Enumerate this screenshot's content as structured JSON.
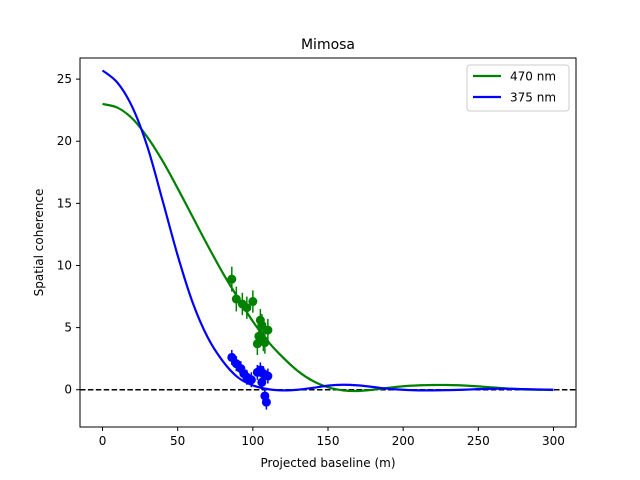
{
  "chart_data": {
    "type": "line",
    "title": "Mimosa",
    "xlabel": "Projected baseline (m)",
    "ylabel": "Spatial coherence",
    "xlim": [
      -15,
      315
    ],
    "ylim": [
      -3,
      26.7
    ],
    "xticks": [
      0,
      50,
      100,
      150,
      200,
      250,
      300
    ],
    "yticks": [
      0,
      5,
      10,
      15,
      20,
      25
    ],
    "grid": false,
    "legend_position": "upper right",
    "reference_line": {
      "y": 0,
      "style": "dashed",
      "color": "#000000"
    },
    "series": [
      {
        "name": "470 nm",
        "color": "#008000",
        "x": [
          0,
          10,
          20,
          30,
          40,
          50,
          60,
          70,
          80,
          90,
          100,
          110,
          120,
          130,
          140,
          150,
          160,
          170,
          180,
          190,
          200,
          210,
          220,
          230,
          240,
          250,
          260,
          270,
          280,
          290,
          300
        ],
        "y": [
          23.0,
          22.7,
          21.8,
          20.3,
          18.4,
          16.2,
          13.9,
          11.6,
          9.4,
          7.4,
          5.5,
          3.9,
          2.6,
          1.5,
          0.7,
          0.2,
          -0.05,
          -0.1,
          0.0,
          0.15,
          0.28,
          0.35,
          0.38,
          0.38,
          0.34,
          0.27,
          0.18,
          0.09,
          0.03,
          0.0,
          -0.02
        ]
      },
      {
        "name": "375 nm",
        "color": "#0000ff",
        "x": [
          0,
          10,
          20,
          30,
          40,
          50,
          60,
          70,
          80,
          90,
          100,
          110,
          120,
          130,
          140,
          150,
          160,
          170,
          180,
          190,
          200,
          210,
          220,
          230,
          240,
          250,
          260,
          270,
          280,
          290,
          300
        ],
        "y": [
          25.7,
          24.7,
          22.7,
          19.5,
          15.2,
          10.8,
          7.0,
          4.2,
          2.3,
          1.0,
          0.35,
          0.05,
          -0.05,
          0.0,
          0.15,
          0.33,
          0.4,
          0.35,
          0.22,
          0.08,
          0.0,
          -0.05,
          -0.05,
          -0.03,
          0.0,
          0.05,
          0.08,
          0.08,
          0.05,
          0.02,
          0.0
        ]
      }
    ],
    "measurements": [
      {
        "color": "#008000",
        "points": [
          {
            "x": 86,
            "y": 8.9,
            "err": 1.0
          },
          {
            "x": 89,
            "y": 7.3,
            "err": 1.0
          },
          {
            "x": 93,
            "y": 6.9,
            "err": 0.9
          },
          {
            "x": 96,
            "y": 6.6,
            "err": 0.9
          },
          {
            "x": 100,
            "y": 7.1,
            "err": 0.9
          },
          {
            "x": 103,
            "y": 3.7,
            "err": 0.9
          },
          {
            "x": 104,
            "y": 4.3,
            "err": 0.9
          },
          {
            "x": 105,
            "y": 5.6,
            "err": 0.9
          },
          {
            "x": 106,
            "y": 5.2,
            "err": 0.9
          },
          {
            "x": 107,
            "y": 4.0,
            "err": 0.9
          },
          {
            "x": 108,
            "y": 3.8,
            "err": 0.9
          },
          {
            "x": 110,
            "y": 4.8,
            "err": 0.9
          }
        ]
      },
      {
        "color": "#0000ff",
        "points": [
          {
            "x": 86,
            "y": 2.6,
            "err": 0.6
          },
          {
            "x": 89,
            "y": 2.1,
            "err": 0.6
          },
          {
            "x": 92,
            "y": 1.7,
            "err": 0.6
          },
          {
            "x": 94,
            "y": 1.3,
            "err": 0.6
          },
          {
            "x": 96,
            "y": 1.0,
            "err": 0.6
          },
          {
            "x": 99,
            "y": 0.8,
            "err": 0.6
          },
          {
            "x": 103,
            "y": 1.4,
            "err": 0.6
          },
          {
            "x": 105,
            "y": 1.6,
            "err": 0.6
          },
          {
            "x": 106,
            "y": 0.6,
            "err": 0.6
          },
          {
            "x": 107,
            "y": 1.3,
            "err": 0.6
          },
          {
            "x": 108,
            "y": -0.5,
            "err": 0.6
          },
          {
            "x": 109,
            "y": -1.0,
            "err": 0.6
          },
          {
            "x": 110,
            "y": 1.1,
            "err": 0.6
          }
        ]
      }
    ]
  }
}
